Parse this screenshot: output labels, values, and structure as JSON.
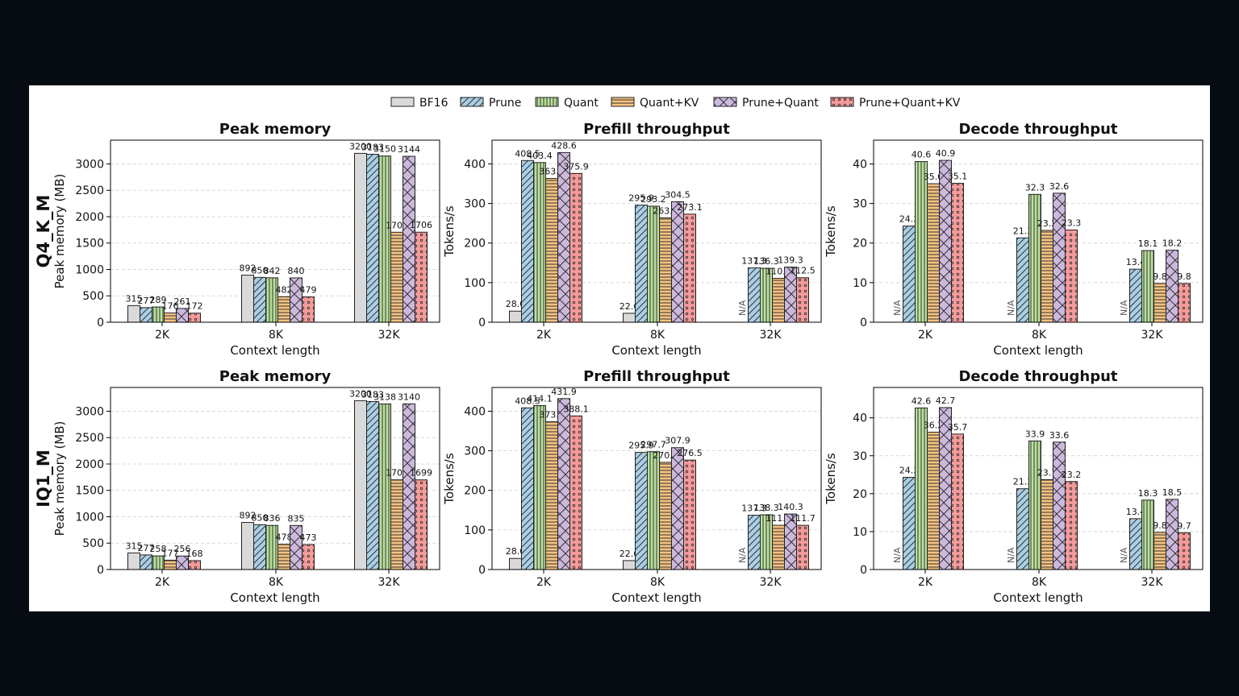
{
  "legend": [
    {
      "name": "BF16",
      "color": "#d9d9d9",
      "pattern": "none"
    },
    {
      "name": "Prune",
      "color": "#a9cfe6",
      "pattern": "diag"
    },
    {
      "name": "Quant",
      "color": "#b9e19b",
      "pattern": "vert"
    },
    {
      "name": "Quant+KV",
      "color": "#f6c27f",
      "pattern": "horiz"
    },
    {
      "name": "Prune+Quant",
      "color": "#cdb8dd",
      "pattern": "cross"
    },
    {
      "name": "Prune+Quant+KV",
      "color": "#f59a9a",
      "pattern": "dots"
    }
  ],
  "rows": [
    {
      "label": "Q4_K_M"
    },
    {
      "label": "IQ1_M"
    }
  ],
  "chart_data": [
    {
      "type": "bar",
      "title": "Peak memory",
      "xlabel": "Context length",
      "ylabel": "Peak memory (MB)",
      "categories": [
        "2K",
        "8K",
        "32K"
      ],
      "ylim": [
        0,
        3450
      ],
      "yticks": [
        "0",
        "500",
        "1000",
        "1500",
        "2000",
        "2500",
        "3000"
      ],
      "ytick_values": [
        0,
        500,
        1000,
        1500,
        2000,
        2500,
        3000
      ],
      "grid": true,
      "series": [
        {
          "name": "BF16",
          "values": [
            315,
            892,
            3200
          ],
          "labels": [
            "315",
            "892",
            "3200"
          ]
        },
        {
          "name": "Prune",
          "values": [
            277,
            850,
            3183
          ],
          "labels": [
            "277",
            "850",
            "3183"
          ]
        },
        {
          "name": "Quant",
          "values": [
            289,
            842,
            3150
          ],
          "labels": [
            "289",
            "842",
            "3150"
          ]
        },
        {
          "name": "Quant+KV",
          "values": [
            176,
            482,
            1705
          ],
          "labels": [
            "176",
            "482",
            "1705"
          ]
        },
        {
          "name": "Prune+Quant",
          "values": [
            261,
            840,
            3144
          ],
          "labels": [
            "261",
            "840",
            "3144"
          ]
        },
        {
          "name": "Prune+Quant+KV",
          "values": [
            172,
            479,
            1706
          ],
          "labels": [
            "172",
            "479",
            "1706"
          ]
        }
      ]
    },
    {
      "type": "bar",
      "title": "Prefill throughput",
      "xlabel": "Context length",
      "ylabel": "Tokens/s",
      "categories": [
        "2K",
        "8K",
        "32K"
      ],
      "ylim": [
        0,
        460
      ],
      "yticks": [
        "0",
        "100",
        "200",
        "300",
        "400"
      ],
      "ytick_values": [
        0,
        100,
        200,
        300,
        400
      ],
      "grid": true,
      "series": [
        {
          "name": "BF16",
          "values": [
            28.0,
            22.6,
            null
          ],
          "labels": [
            "28.0",
            "22.6",
            "N/A"
          ]
        },
        {
          "name": "Prune",
          "values": [
            408.5,
            295.9,
            137.3
          ],
          "labels": [
            "408.5",
            "295.9",
            "137.3"
          ]
        },
        {
          "name": "Quant",
          "values": [
            403.4,
            293.2,
            136.3
          ],
          "labels": [
            "403.4",
            "293.2",
            "136.3"
          ]
        },
        {
          "name": "Quant+KV",
          "values": [
            363.2,
            263.9,
            110.9
          ],
          "labels": [
            "363.2",
            "263.9",
            "110.9"
          ]
        },
        {
          "name": "Prune+Quant",
          "values": [
            428.6,
            304.5,
            139.3
          ],
          "labels": [
            "428.6",
            "304.5",
            "139.3"
          ]
        },
        {
          "name": "Prune+Quant+KV",
          "values": [
            375.9,
            273.1,
            112.5
          ],
          "labels": [
            "375.9",
            "273.1",
            "112.5"
          ]
        }
      ]
    },
    {
      "type": "bar",
      "title": "Decode throughput",
      "xlabel": "Context length",
      "ylabel": "Tokens/s",
      "categories": [
        "2K",
        "8K",
        "32K"
      ],
      "ylim": [
        0,
        46
      ],
      "yticks": [
        "0",
        "10",
        "20",
        "30",
        "40"
      ],
      "ytick_values": [
        0,
        10,
        20,
        30,
        40
      ],
      "grid": true,
      "series": [
        {
          "name": "BF16",
          "values": [
            null,
            null,
            null
          ],
          "labels": [
            "N/A",
            "N/A",
            "N/A"
          ]
        },
        {
          "name": "Prune",
          "values": [
            24.3,
            21.3,
            13.4
          ],
          "labels": [
            "24.3",
            "21.3",
            "13.4"
          ]
        },
        {
          "name": "Quant",
          "values": [
            40.6,
            32.3,
            18.1
          ],
          "labels": [
            "40.6",
            "32.3",
            "18.1"
          ]
        },
        {
          "name": "Quant+KV",
          "values": [
            35.0,
            23.2,
            9.8
          ],
          "labels": [
            "35.0",
            "23.2",
            "9.8"
          ]
        },
        {
          "name": "Prune+Quant",
          "values": [
            40.9,
            32.6,
            18.2
          ],
          "labels": [
            "40.9",
            "32.6",
            "18.2"
          ]
        },
        {
          "name": "Prune+Quant+KV",
          "values": [
            35.1,
            23.3,
            9.8
          ],
          "labels": [
            "35.1",
            "23.3",
            "9.8"
          ]
        }
      ]
    },
    {
      "type": "bar",
      "title": "Peak memory",
      "xlabel": "Context length",
      "ylabel": "Peak memory (MB)",
      "categories": [
        "2K",
        "8K",
        "32K"
      ],
      "ylim": [
        0,
        3450
      ],
      "yticks": [
        "0",
        "500",
        "1000",
        "1500",
        "2000",
        "2500",
        "3000"
      ],
      "ytick_values": [
        0,
        500,
        1000,
        1500,
        2000,
        2500,
        3000
      ],
      "grid": true,
      "series": [
        {
          "name": "BF16",
          "values": [
            315,
            892,
            3200
          ],
          "labels": [
            "315",
            "892",
            "3200"
          ]
        },
        {
          "name": "Prune",
          "values": [
            277,
            850,
            3183
          ],
          "labels": [
            "277",
            "850",
            "3183"
          ]
        },
        {
          "name": "Quant",
          "values": [
            258,
            836,
            3138
          ],
          "labels": [
            "258",
            "836",
            "3138"
          ]
        },
        {
          "name": "Quant+KV",
          "values": [
            177,
            478,
            1700
          ],
          "labels": [
            "177",
            "478",
            "1700"
          ]
        },
        {
          "name": "Prune+Quant",
          "values": [
            256,
            835,
            3140
          ],
          "labels": [
            "256",
            "835",
            "3140"
          ]
        },
        {
          "name": "Prune+Quant+KV",
          "values": [
            168,
            473,
            1699
          ],
          "labels": [
            "168",
            "473",
            "1699"
          ]
        }
      ]
    },
    {
      "type": "bar",
      "title": "Prefill throughput",
      "xlabel": "Context length",
      "ylabel": "Tokens/s",
      "categories": [
        "2K",
        "8K",
        "32K"
      ],
      "ylim": [
        0,
        460
      ],
      "yticks": [
        "0",
        "100",
        "200",
        "300",
        "400"
      ],
      "ytick_values": [
        0,
        100,
        200,
        300,
        400
      ],
      "grid": true,
      "series": [
        {
          "name": "BF16",
          "values": [
            28.0,
            22.6,
            null
          ],
          "labels": [
            "28.0",
            "22.6",
            "N/A"
          ]
        },
        {
          "name": "Prune",
          "values": [
            408.5,
            295.9,
            137.3
          ],
          "labels": [
            "408.5",
            "295.9",
            "137.3"
          ]
        },
        {
          "name": "Quant",
          "values": [
            414.1,
            297.7,
            138.3
          ],
          "labels": [
            "414.1",
            "297.7",
            "138.3"
          ]
        },
        {
          "name": "Quant+KV",
          "values": [
            373.4,
            270.8,
            111.8
          ],
          "labels": [
            "373.4",
            "270.8",
            "111.8"
          ]
        },
        {
          "name": "Prune+Quant",
          "values": [
            431.9,
            307.9,
            140.3
          ],
          "labels": [
            "431.9",
            "307.9",
            "140.3"
          ]
        },
        {
          "name": "Prune+Quant+KV",
          "values": [
            388.1,
            276.5,
            111.7
          ],
          "labels": [
            "388.1",
            "276.5",
            "111.7"
          ]
        }
      ]
    },
    {
      "type": "bar",
      "title": "Decode throughput",
      "xlabel": "Context length",
      "ylabel": "Tokens/s",
      "categories": [
        "2K",
        "8K",
        "32K"
      ],
      "ylim": [
        0,
        48
      ],
      "yticks": [
        "0",
        "10",
        "20",
        "30",
        "40"
      ],
      "ytick_values": [
        0,
        10,
        20,
        30,
        40
      ],
      "grid": true,
      "series": [
        {
          "name": "BF16",
          "values": [
            null,
            null,
            null
          ],
          "labels": [
            "N/A",
            "N/A",
            "N/A"
          ]
        },
        {
          "name": "Prune",
          "values": [
            24.3,
            21.3,
            13.4
          ],
          "labels": [
            "24.3",
            "21.3",
            "13.4"
          ]
        },
        {
          "name": "Quant",
          "values": [
            42.6,
            33.9,
            18.3
          ],
          "labels": [
            "42.6",
            "33.9",
            "18.3"
          ]
        },
        {
          "name": "Quant+KV",
          "values": [
            36.2,
            23.7,
            9.8
          ],
          "labels": [
            "36.2",
            "23.7",
            "9.8"
          ]
        },
        {
          "name": "Prune+Quant",
          "values": [
            42.7,
            33.6,
            18.5
          ],
          "labels": [
            "42.7",
            "33.6",
            "18.5"
          ]
        },
        {
          "name": "Prune+Quant+KV",
          "values": [
            35.7,
            23.2,
            9.7
          ],
          "labels": [
            "35.7",
            "23.2",
            "9.7"
          ]
        }
      ]
    }
  ]
}
